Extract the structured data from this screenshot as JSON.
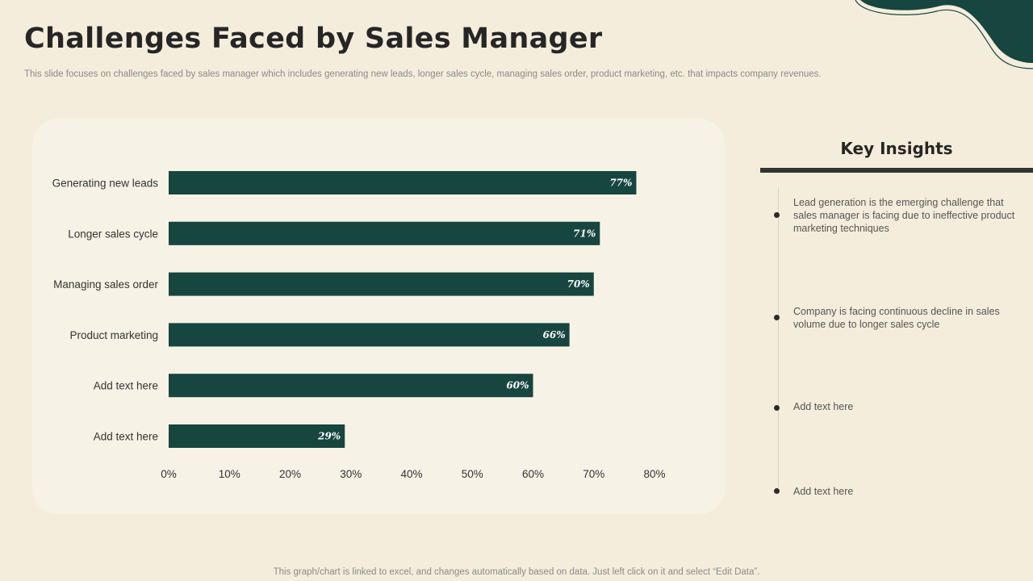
{
  "title": "Challenges Faced by Sales Manager",
  "subtitle": "This slide focuses on challenges faced by sales manager which includes generating new leads, longer sales cycle, managing sales order, product marketing, etc. that impacts company revenues.",
  "footer": "This graph/chart is linked to excel, and changes automatically based on data. Just left click on it and select “Edit Data”.",
  "colors": {
    "background": "#f5eddc",
    "panel": "#f6f2e6",
    "bar": "#17453f",
    "accent": "#17453f"
  },
  "chart_data": {
    "type": "bar",
    "orientation": "horizontal",
    "categories": [
      "Generating new leads",
      "Longer sales cycle",
      "Managing sales order",
      "Product marketing",
      "Add text here",
      "Add text here"
    ],
    "values": [
      77,
      71,
      70,
      66,
      60,
      29
    ],
    "value_labels": [
      "77%",
      "71%",
      "70%",
      "66%",
      "60%",
      "29%"
    ],
    "xlim": [
      0,
      80
    ],
    "x_ticks": [
      "0%",
      "10%",
      "20%",
      "30%",
      "40%",
      "50%",
      "60%",
      "70%",
      "80%"
    ],
    "grid": false,
    "legend": "none"
  },
  "insights": {
    "title": "Key Insights",
    "items": [
      {
        "text": "Lead generation is the emerging challenge that sales manager is facing due to ineffective product marketing techniques"
      },
      {
        "text": "Company is facing continuous decline in sales volume due to longer sales cycle"
      },
      {
        "text": "Add text here"
      },
      {
        "text": "Add text here"
      }
    ]
  }
}
